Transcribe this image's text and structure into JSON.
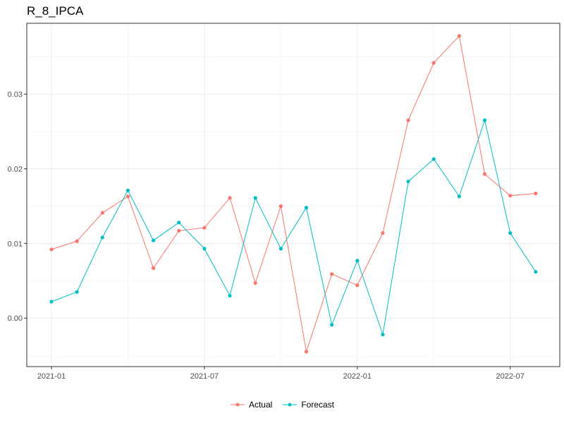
{
  "chart_data": {
    "type": "line",
    "title": "R_8_IPCA",
    "xlabel": "",
    "ylabel": "",
    "x": [
      "2021-01",
      "2021-02",
      "2021-03",
      "2021-04",
      "2021-05",
      "2021-06",
      "2021-07",
      "2021-08",
      "2021-09",
      "2021-10",
      "2021-11",
      "2021-12",
      "2022-01",
      "2022-02",
      "2022-03",
      "2022-04",
      "2022-05",
      "2022-06",
      "2022-07",
      "2022-08"
    ],
    "x_ticks": [
      "2021-01",
      "2021-07",
      "2022-01",
      "2022-07"
    ],
    "y_ticks": [
      "0.00",
      "0.01",
      "0.02",
      "0.03"
    ],
    "ylim": [
      -0.0065,
      0.0395
    ],
    "grid": true,
    "legend_position": "bottom",
    "series": [
      {
        "name": "Actual",
        "color": "#F8766D",
        "values": [
          0.0092,
          0.0103,
          0.0141,
          0.0163,
          0.0067,
          0.0117,
          0.0121,
          0.0161,
          0.0047,
          0.015,
          -0.0045,
          0.0059,
          0.0044,
          0.0114,
          0.0265,
          0.0342,
          0.0378,
          0.0193,
          0.0164,
          0.0167
        ]
      },
      {
        "name": "Forecast",
        "color": "#00BFC4",
        "values": [
          0.0022,
          0.0035,
          0.0108,
          0.0171,
          0.0104,
          0.0128,
          0.0093,
          0.003,
          0.0161,
          0.0093,
          0.0148,
          -0.0009,
          0.0077,
          -0.0022,
          0.0183,
          0.0213,
          0.0163,
          0.0265,
          0.0114,
          0.0062
        ]
      }
    ]
  }
}
